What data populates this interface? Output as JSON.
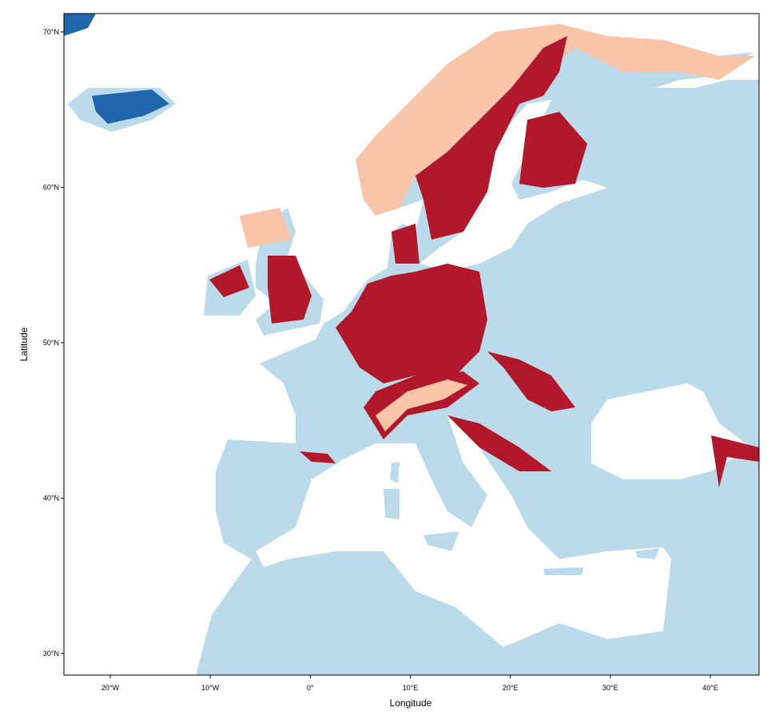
{
  "chart_data": {
    "type": "map",
    "xlabel": "Longitude",
    "ylabel": "Latitude",
    "xlim": [
      -24.63,
      44.87
    ],
    "ylim": [
      28.61,
      71.18
    ],
    "xticks": [
      {
        "value": -20,
        "label": "20°W"
      },
      {
        "value": -10,
        "label": "10°W"
      },
      {
        "value": 0,
        "label": "0°"
      },
      {
        "value": 10,
        "label": "10°E"
      },
      {
        "value": 20,
        "label": "20°E"
      },
      {
        "value": 30,
        "label": "30°E"
      },
      {
        "value": 40,
        "label": "40°E"
      }
    ],
    "yticks": [
      {
        "value": 30,
        "label": "30°N"
      },
      {
        "value": 40,
        "label": "40°N"
      },
      {
        "value": 50,
        "label": "50°N"
      },
      {
        "value": 60,
        "label": "60°N"
      },
      {
        "value": 70,
        "label": "70°N"
      }
    ]
  }
}
